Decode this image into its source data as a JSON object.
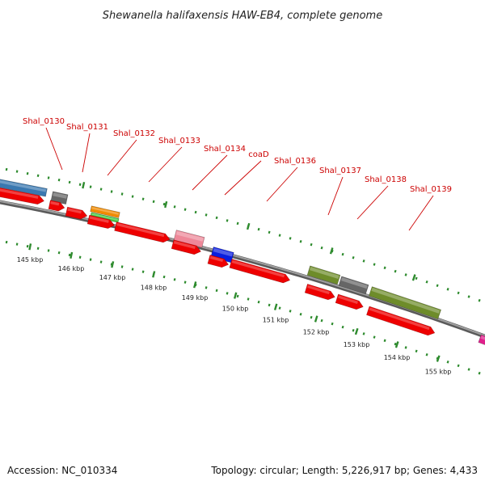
{
  "title": "Shewanella halifaxensis HAW-EB4, complete genome",
  "footer": {
    "accession": "Accession: NC_010334",
    "summary": "Topology: circular; Length: 5,226,917 bp; Genes: 4,433"
  },
  "colors": {
    "backbone": "#808080",
    "label": "#cc0000",
    "tick": "#2e8b2e",
    "cds": "#ee0000",
    "feature_blue": "#3a78b0",
    "feature_grey": "#666666",
    "feature_orange": "#f08a00",
    "feature_green": "#44cc44",
    "feature_pink": "#ee8899",
    "feature_royal": "#0a1ee0",
    "feature_olive": "#6e8c2a",
    "feature_magenta": "#e0208c"
  },
  "gene_labels": [
    "Shal_0130",
    "Shal_0131",
    "Shal_0132",
    "Shal_0133",
    "Shal_0134",
    "coaD",
    "Shal_0136",
    "Shal_0137",
    "Shal_0138",
    "Shal_0139"
  ],
  "kbp_labels": [
    "145 kbp",
    "146 kbp",
    "147 kbp",
    "148 kbp",
    "149 kbp",
    "150 kbp",
    "151 kbp",
    "152 kbp",
    "153 kbp",
    "154 kbp",
    "155 kbp"
  ]
}
